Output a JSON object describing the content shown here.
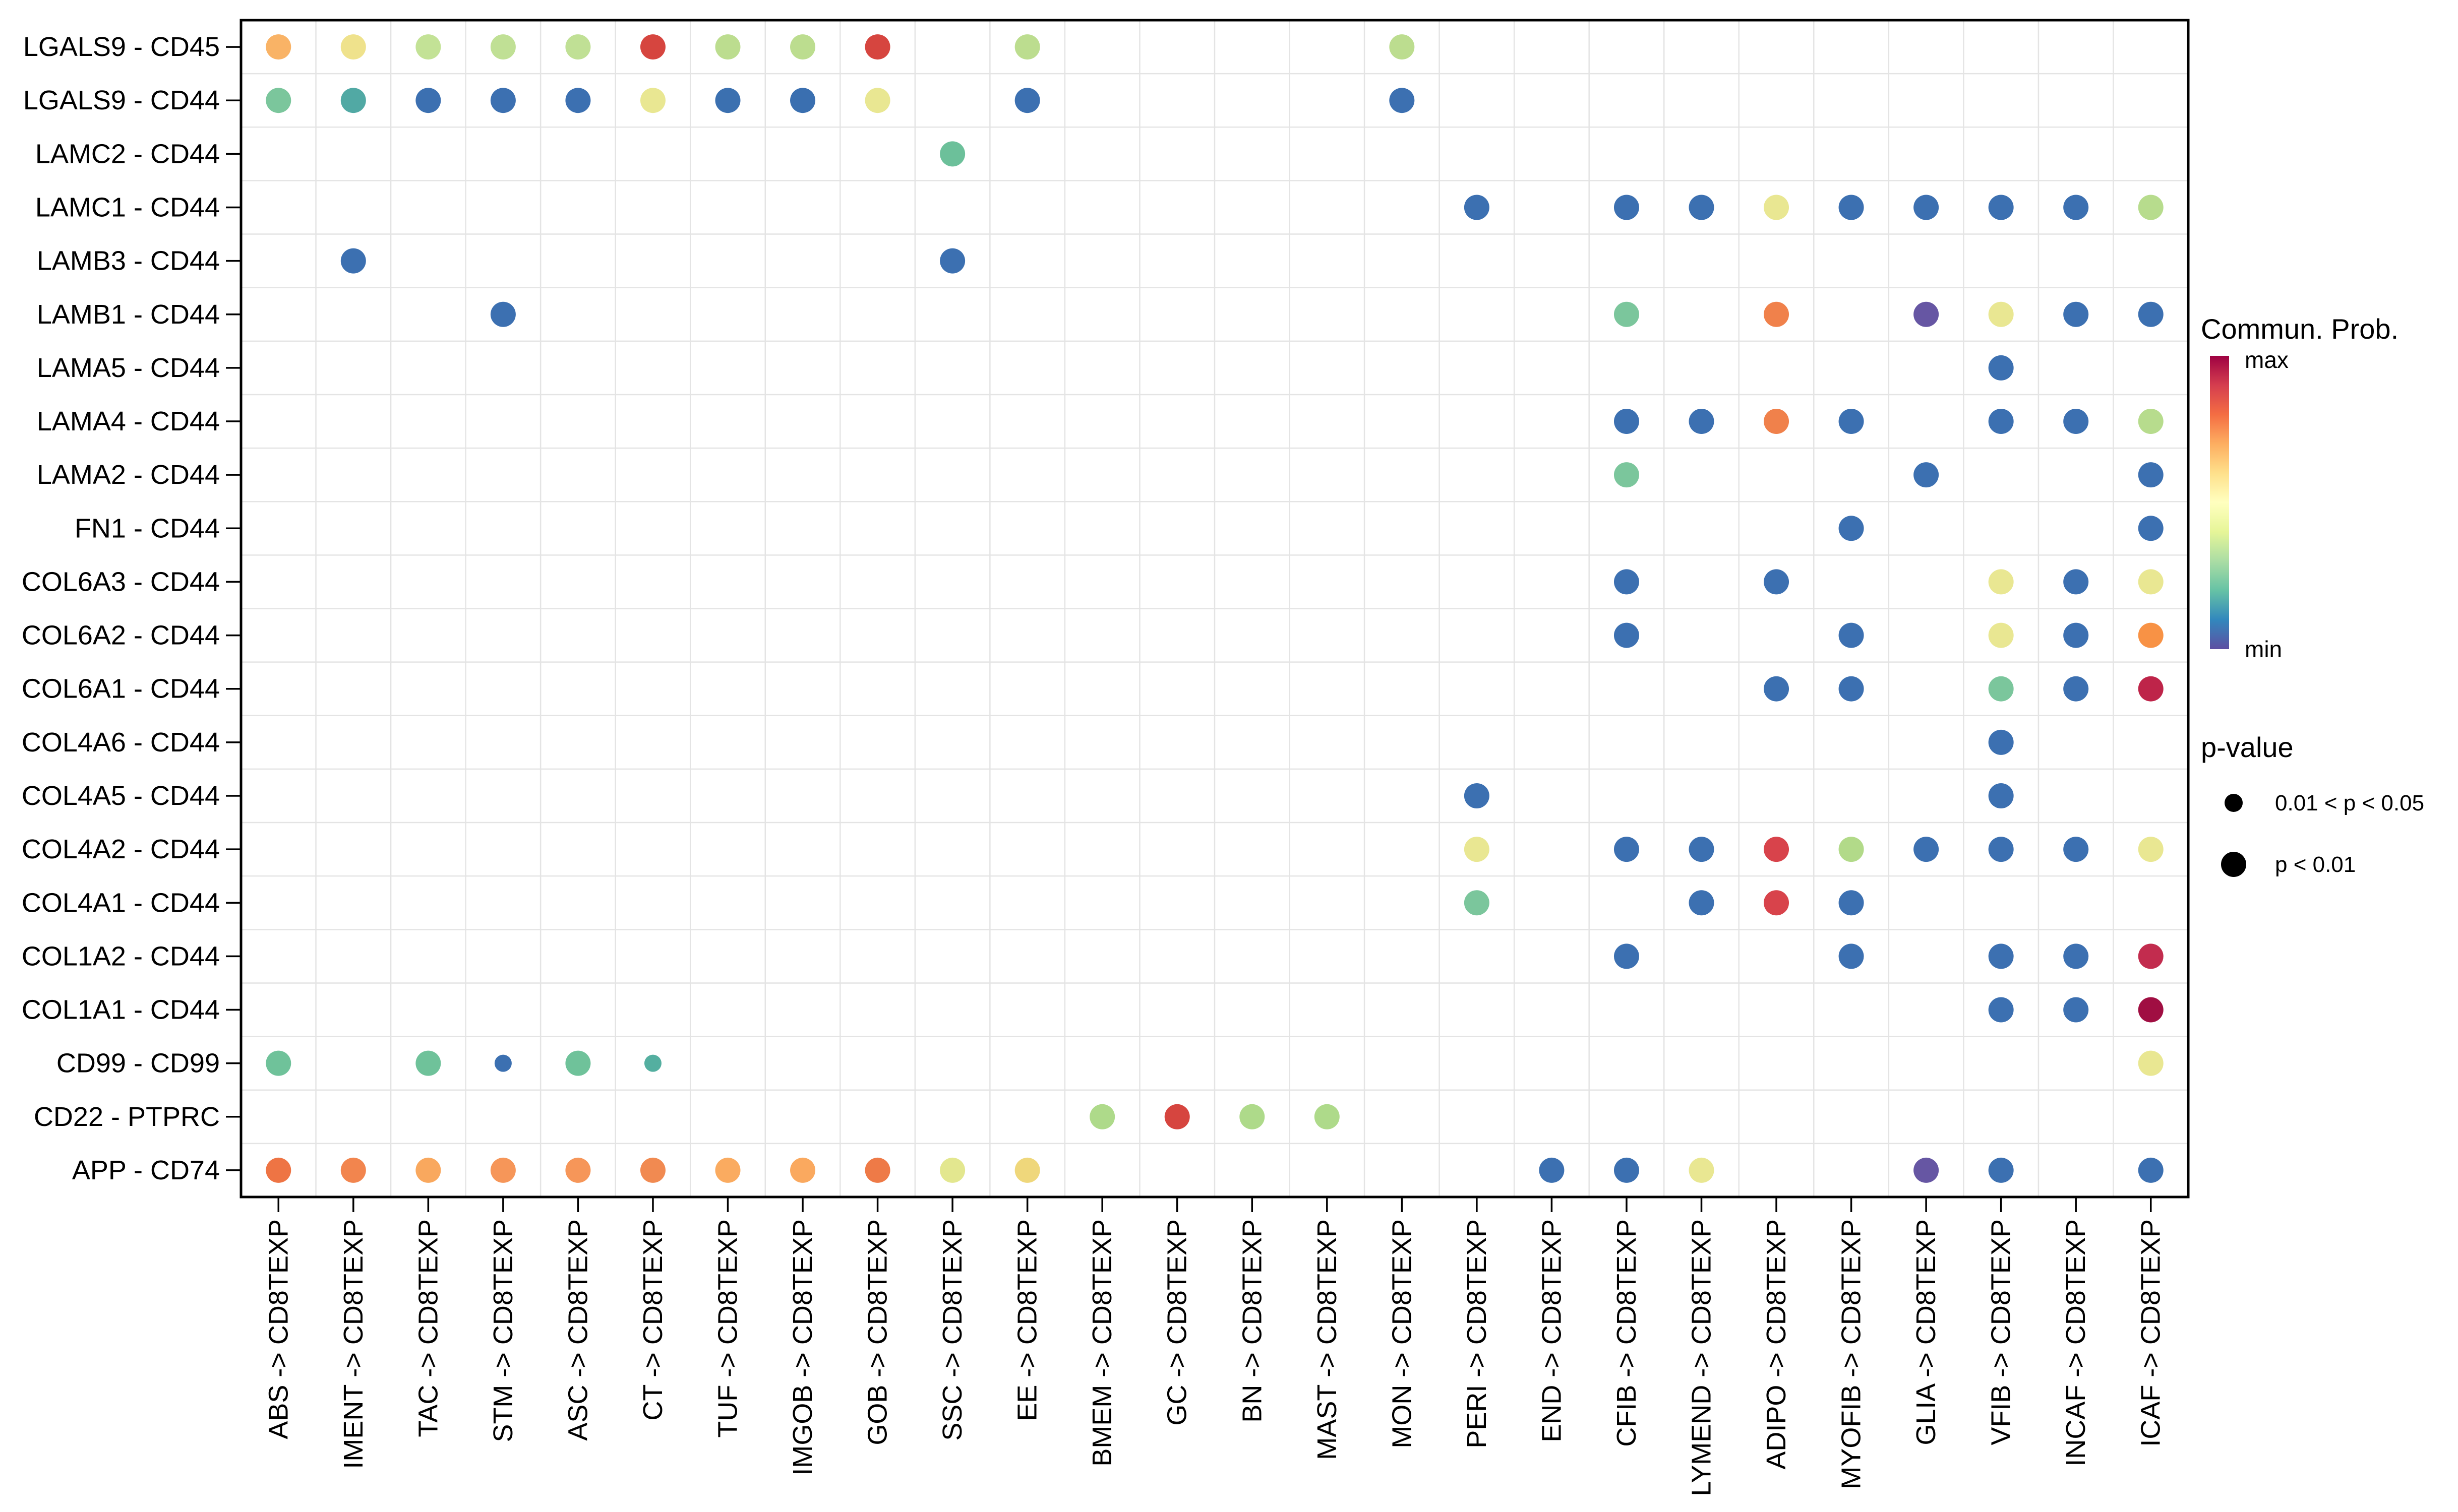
{
  "chart_data": {
    "type": "scatter",
    "title": "",
    "xlabel": "",
    "ylabel": "",
    "grid": "on",
    "rows": [
      "LGALS9 - CD45",
      "LGALS9 - CD44",
      "LAMC2 - CD44",
      "LAMC1 - CD44",
      "LAMB3 - CD44",
      "LAMB1 - CD44",
      "LAMA5 - CD44",
      "LAMA4 - CD44",
      "LAMA2 - CD44",
      "FN1 - CD44",
      "COL6A3 - CD44",
      "COL6A2 - CD44",
      "COL6A1 - CD44",
      "COL4A6 - CD44",
      "COL4A5 - CD44",
      "COL4A2 - CD44",
      "COL4A1 - CD44",
      "COL1A2 - CD44",
      "COL1A1 - CD44",
      "CD99 - CD99",
      "CD22 - PTPRC",
      "APP - CD74"
    ],
    "columns": [
      "ABS -> CD8TEXP",
      "IMENT -> CD8TEXP",
      "TAC -> CD8TEXP",
      "STM -> CD8TEXP",
      "ASC -> CD8TEXP",
      "CT -> CD8TEXP",
      "TUF -> CD8TEXP",
      "IMGOB -> CD8TEXP",
      "GOB -> CD8TEXP",
      "SSC -> CD8TEXP",
      "EE -> CD8TEXP",
      "BMEM -> CD8TEXP",
      "GC -> CD8TEXP",
      "BN -> CD8TEXP",
      "MAST -> CD8TEXP",
      "MON -> CD8TEXP",
      "PERI -> CD8TEXP",
      "END -> CD8TEXP",
      "CFIB -> CD8TEXP",
      "LYMEND -> CD8TEXP",
      "ADIPO -> CD8TEXP",
      "MYOFIB -> CD8TEXP",
      "GLIA -> CD8TEXP",
      "VFIB -> CD8TEXP",
      "INCAF -> CD8TEXP",
      "ICAF -> CD8TEXP"
    ],
    "points": [
      {
        "r": 0,
        "c": 0,
        "color": "#F9B366",
        "size": "large"
      },
      {
        "r": 0,
        "c": 1,
        "color": "#EFE28C",
        "size": "large"
      },
      {
        "r": 0,
        "c": 2,
        "color": "#C3E296",
        "size": "large"
      },
      {
        "r": 0,
        "c": 3,
        "color": "#C0E095",
        "size": "large"
      },
      {
        "r": 0,
        "c": 4,
        "color": "#C0E095",
        "size": "large"
      },
      {
        "r": 0,
        "c": 5,
        "color": "#D6453F",
        "size": "large"
      },
      {
        "r": 0,
        "c": 6,
        "color": "#BCDD8F",
        "size": "large"
      },
      {
        "r": 0,
        "c": 7,
        "color": "#BCDD8F",
        "size": "large"
      },
      {
        "r": 0,
        "c": 8,
        "color": "#D6453F",
        "size": "large"
      },
      {
        "r": 0,
        "c": 10,
        "color": "#BCDD8F",
        "size": "large"
      },
      {
        "r": 0,
        "c": 15,
        "color": "#BCDD8F",
        "size": "large"
      },
      {
        "r": 1,
        "c": 0,
        "color": "#7BC69C",
        "size": "large"
      },
      {
        "r": 1,
        "c": 1,
        "color": "#51A9A4",
        "size": "large"
      },
      {
        "r": 1,
        "c": 2,
        "color": "#3C70B1",
        "size": "large"
      },
      {
        "r": 1,
        "c": 3,
        "color": "#3C70B1",
        "size": "large"
      },
      {
        "r": 1,
        "c": 4,
        "color": "#3C70B1",
        "size": "large"
      },
      {
        "r": 1,
        "c": 5,
        "color": "#E9E792",
        "size": "large"
      },
      {
        "r": 1,
        "c": 6,
        "color": "#3B70B0",
        "size": "large"
      },
      {
        "r": 1,
        "c": 7,
        "color": "#3A6FB0",
        "size": "large"
      },
      {
        "r": 1,
        "c": 8,
        "color": "#E9E792",
        "size": "large"
      },
      {
        "r": 1,
        "c": 10,
        "color": "#3C70B1",
        "size": "large"
      },
      {
        "r": 1,
        "c": 15,
        "color": "#3C70B1",
        "size": "large"
      },
      {
        "r": 2,
        "c": 9,
        "color": "#6CC09A",
        "size": "large"
      },
      {
        "r": 3,
        "c": 16,
        "color": "#3C70B1",
        "size": "large"
      },
      {
        "r": 3,
        "c": 18,
        "color": "#3C70B1",
        "size": "large"
      },
      {
        "r": 3,
        "c": 19,
        "color": "#3C70B1",
        "size": "large"
      },
      {
        "r": 3,
        "c": 20,
        "color": "#E9E792",
        "size": "large"
      },
      {
        "r": 3,
        "c": 21,
        "color": "#3C70B1",
        "size": "large"
      },
      {
        "r": 3,
        "c": 22,
        "color": "#3C70B1",
        "size": "large"
      },
      {
        "r": 3,
        "c": 23,
        "color": "#3C70B1",
        "size": "large"
      },
      {
        "r": 3,
        "c": 24,
        "color": "#3C70B1",
        "size": "large"
      },
      {
        "r": 3,
        "c": 25,
        "color": "#B7DC8D",
        "size": "large"
      },
      {
        "r": 4,
        "c": 1,
        "color": "#3C70B1",
        "size": "large"
      },
      {
        "r": 4,
        "c": 9,
        "color": "#3C70B1",
        "size": "large"
      },
      {
        "r": 5,
        "c": 3,
        "color": "#3C70B1",
        "size": "large"
      },
      {
        "r": 5,
        "c": 18,
        "color": "#7BC69C",
        "size": "large"
      },
      {
        "r": 5,
        "c": 20,
        "color": "#F0814B",
        "size": "large"
      },
      {
        "r": 5,
        "c": 22,
        "color": "#6656A3",
        "size": "large"
      },
      {
        "r": 5,
        "c": 23,
        "color": "#E9E792",
        "size": "large"
      },
      {
        "r": 5,
        "c": 24,
        "color": "#3C70B1",
        "size": "large"
      },
      {
        "r": 5,
        "c": 25,
        "color": "#3C70B1",
        "size": "large"
      },
      {
        "r": 6,
        "c": 23,
        "color": "#3C70B1",
        "size": "large"
      },
      {
        "r": 7,
        "c": 18,
        "color": "#3C70B1",
        "size": "large"
      },
      {
        "r": 7,
        "c": 19,
        "color": "#3C70B1",
        "size": "large"
      },
      {
        "r": 7,
        "c": 20,
        "color": "#F0814B",
        "size": "large"
      },
      {
        "r": 7,
        "c": 21,
        "color": "#3C70B1",
        "size": "large"
      },
      {
        "r": 7,
        "c": 23,
        "color": "#3C70B1",
        "size": "large"
      },
      {
        "r": 7,
        "c": 24,
        "color": "#3C70B1",
        "size": "large"
      },
      {
        "r": 7,
        "c": 25,
        "color": "#B7DC8D",
        "size": "large"
      },
      {
        "r": 8,
        "c": 18,
        "color": "#7BC69C",
        "size": "large"
      },
      {
        "r": 8,
        "c": 22,
        "color": "#3C70B1",
        "size": "large"
      },
      {
        "r": 8,
        "c": 25,
        "color": "#3C70B1",
        "size": "large"
      },
      {
        "r": 9,
        "c": 21,
        "color": "#3C70B1",
        "size": "large"
      },
      {
        "r": 9,
        "c": 25,
        "color": "#3C70B1",
        "size": "large"
      },
      {
        "r": 10,
        "c": 18,
        "color": "#3C70B1",
        "size": "large"
      },
      {
        "r": 10,
        "c": 20,
        "color": "#3C70B1",
        "size": "large"
      },
      {
        "r": 10,
        "c": 23,
        "color": "#E9E792",
        "size": "large"
      },
      {
        "r": 10,
        "c": 24,
        "color": "#3C70B1",
        "size": "large"
      },
      {
        "r": 10,
        "c": 25,
        "color": "#E9E792",
        "size": "large"
      },
      {
        "r": 11,
        "c": 18,
        "color": "#3C70B1",
        "size": "large"
      },
      {
        "r": 11,
        "c": 21,
        "color": "#3C70B1",
        "size": "large"
      },
      {
        "r": 11,
        "c": 23,
        "color": "#E9E792",
        "size": "large"
      },
      {
        "r": 11,
        "c": 24,
        "color": "#3C70B1",
        "size": "large"
      },
      {
        "r": 11,
        "c": 25,
        "color": "#F89245",
        "size": "large"
      },
      {
        "r": 12,
        "c": 20,
        "color": "#3C70B1",
        "size": "large"
      },
      {
        "r": 12,
        "c": 21,
        "color": "#3C70B1",
        "size": "large"
      },
      {
        "r": 12,
        "c": 23,
        "color": "#7BC69C",
        "size": "large"
      },
      {
        "r": 12,
        "c": 24,
        "color": "#3C70B1",
        "size": "large"
      },
      {
        "r": 12,
        "c": 25,
        "color": "#BE2449",
        "size": "large"
      },
      {
        "r": 13,
        "c": 23,
        "color": "#3C70B1",
        "size": "large"
      },
      {
        "r": 14,
        "c": 16,
        "color": "#3C70B1",
        "size": "large"
      },
      {
        "r": 14,
        "c": 23,
        "color": "#3C70B1",
        "size": "large"
      },
      {
        "r": 15,
        "c": 16,
        "color": "#E9E792",
        "size": "large"
      },
      {
        "r": 15,
        "c": 18,
        "color": "#3C70B1",
        "size": "large"
      },
      {
        "r": 15,
        "c": 19,
        "color": "#3C70B1",
        "size": "large"
      },
      {
        "r": 15,
        "c": 20,
        "color": "#D8434B",
        "size": "large"
      },
      {
        "r": 15,
        "c": 21,
        "color": "#B2DA89",
        "size": "large"
      },
      {
        "r": 15,
        "c": 22,
        "color": "#3C70B1",
        "size": "large"
      },
      {
        "r": 15,
        "c": 23,
        "color": "#3C70B1",
        "size": "large"
      },
      {
        "r": 15,
        "c": 24,
        "color": "#3C70B1",
        "size": "large"
      },
      {
        "r": 15,
        "c": 25,
        "color": "#E9E792",
        "size": "large"
      },
      {
        "r": 16,
        "c": 16,
        "color": "#7BC69C",
        "size": "large"
      },
      {
        "r": 16,
        "c": 19,
        "color": "#3C70B1",
        "size": "large"
      },
      {
        "r": 16,
        "c": 20,
        "color": "#D8434B",
        "size": "large"
      },
      {
        "r": 16,
        "c": 21,
        "color": "#3C70B1",
        "size": "large"
      },
      {
        "r": 17,
        "c": 18,
        "color": "#3C70B1",
        "size": "large"
      },
      {
        "r": 17,
        "c": 21,
        "color": "#3C70B1",
        "size": "large"
      },
      {
        "r": 17,
        "c": 23,
        "color": "#3C70B1",
        "size": "large"
      },
      {
        "r": 17,
        "c": 24,
        "color": "#3C70B1",
        "size": "large"
      },
      {
        "r": 17,
        "c": 25,
        "color": "#C22C4E",
        "size": "large"
      },
      {
        "r": 18,
        "c": 23,
        "color": "#3C70B1",
        "size": "large"
      },
      {
        "r": 18,
        "c": 24,
        "color": "#3C70B1",
        "size": "large"
      },
      {
        "r": 18,
        "c": 25,
        "color": "#A00E42",
        "size": "large"
      },
      {
        "r": 19,
        "c": 0,
        "color": "#6FC29A",
        "size": "large"
      },
      {
        "r": 19,
        "c": 2,
        "color": "#6FC29A",
        "size": "large"
      },
      {
        "r": 19,
        "c": 3,
        "color": "#3C70B1",
        "size": "small"
      },
      {
        "r": 19,
        "c": 4,
        "color": "#6FC29A",
        "size": "large"
      },
      {
        "r": 19,
        "c": 5,
        "color": "#54AFA0",
        "size": "small"
      },
      {
        "r": 19,
        "c": 25,
        "color": "#E9E792",
        "size": "large"
      },
      {
        "r": 20,
        "c": 11,
        "color": "#AEDA8A",
        "size": "large"
      },
      {
        "r": 20,
        "c": 12,
        "color": "#D6453F",
        "size": "large"
      },
      {
        "r": 20,
        "c": 13,
        "color": "#AEDA8A",
        "size": "large"
      },
      {
        "r": 20,
        "c": 14,
        "color": "#AEDA8A",
        "size": "large"
      },
      {
        "r": 21,
        "c": 0,
        "color": "#EE7444",
        "size": "large"
      },
      {
        "r": 21,
        "c": 1,
        "color": "#F2854E",
        "size": "large"
      },
      {
        "r": 21,
        "c": 2,
        "color": "#F9A85E",
        "size": "large"
      },
      {
        "r": 21,
        "c": 3,
        "color": "#F69659",
        "size": "large"
      },
      {
        "r": 21,
        "c": 4,
        "color": "#F69659",
        "size": "large"
      },
      {
        "r": 21,
        "c": 5,
        "color": "#F18A51",
        "size": "large"
      },
      {
        "r": 21,
        "c": 6,
        "color": "#FAAB60",
        "size": "large"
      },
      {
        "r": 21,
        "c": 7,
        "color": "#FAA95F",
        "size": "large"
      },
      {
        "r": 21,
        "c": 8,
        "color": "#EE7A47",
        "size": "large"
      },
      {
        "r": 21,
        "c": 9,
        "color": "#E3E78F",
        "size": "large"
      },
      {
        "r": 21,
        "c": 10,
        "color": "#EFD77B",
        "size": "large"
      },
      {
        "r": 21,
        "c": 17,
        "color": "#3C70B1",
        "size": "large"
      },
      {
        "r": 21,
        "c": 18,
        "color": "#3C70B1",
        "size": "large"
      },
      {
        "r": 21,
        "c": 19,
        "color": "#E9E792",
        "size": "large"
      },
      {
        "r": 21,
        "c": 22,
        "color": "#6656A3",
        "size": "large"
      },
      {
        "r": 21,
        "c": 23,
        "color": "#3C70B1",
        "size": "large"
      },
      {
        "r": 21,
        "c": 25,
        "color": "#3C70B1",
        "size": "large"
      }
    ],
    "legend": {
      "color_legend": {
        "title": "Commun. Prob.",
        "max_label": "max",
        "min_label": "min",
        "gradient_top_to_bottom": [
          "#9E0142",
          "#D53E4F",
          "#F46D43",
          "#FDAE61",
          "#FEE08B",
          "#FFFFBF",
          "#E6F598",
          "#ABDDA4",
          "#66C2A5",
          "#3288BD",
          "#5E4FA2"
        ]
      },
      "size_legend": {
        "title": "p-value",
        "items": [
          {
            "label": "0.01 < p < 0.05",
            "size": "small"
          },
          {
            "label": "p < 0.01",
            "size": "large"
          }
        ]
      },
      "position": "right"
    },
    "colors": {
      "min_color": "#5E4FA2",
      "max_color": "#9E0142",
      "grid_color": "#E4E4E4",
      "panel_border": "#000000"
    }
  }
}
